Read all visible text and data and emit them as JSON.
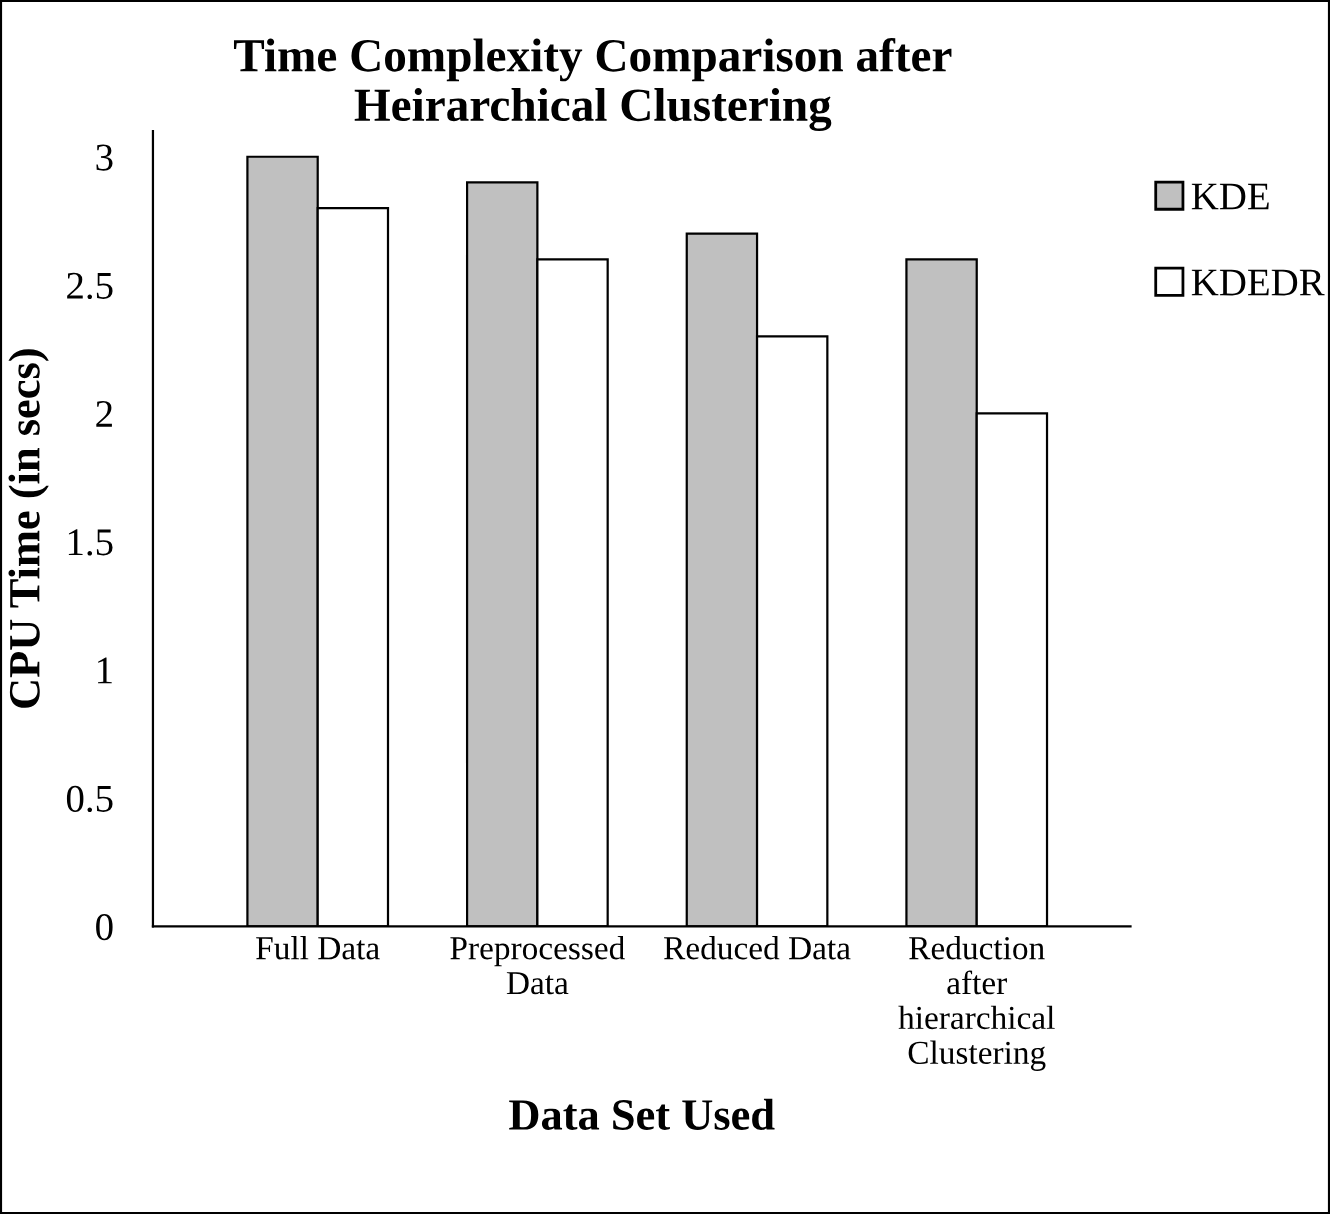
{
  "chart_data": {
    "type": "bar",
    "title": "Time Complexity Comparison after\nHeirarchical Clustering",
    "xlabel": "Data Set Used",
    "ylabel": "CPU Time (in secs)",
    "categories": [
      "Full Data",
      "Preprocessed\nData",
      "Reduced Data",
      "Reduction\nafter\nhierarchical\nClustering"
    ],
    "series": [
      {
        "name": "KDE",
        "color": "#c0c0c0",
        "values": [
          3,
          2.9,
          2.7,
          2.6
        ]
      },
      {
        "name": "KDEDR",
        "color": "#ffffff",
        "values": [
          2.8,
          2.6,
          2.3,
          2.0
        ]
      }
    ],
    "ylim": [
      0,
      3.1
    ],
    "yticks": [
      0,
      0.5,
      1,
      1.5,
      2,
      2.5,
      3
    ],
    "grid": false,
    "legend": "top right"
  }
}
